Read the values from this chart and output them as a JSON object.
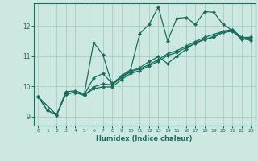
{
  "xlabel": "Humidex (Indice chaleur)",
  "ylabel": "",
  "bg_color": "#cce8e0",
  "line_color": "#1a6e5e",
  "grid_color": "#aaccc4",
  "xlim": [
    -0.5,
    23.5
  ],
  "ylim": [
    8.7,
    12.75
  ],
  "xticks": [
    0,
    1,
    2,
    3,
    4,
    5,
    6,
    7,
    8,
    9,
    10,
    11,
    12,
    13,
    14,
    15,
    16,
    17,
    18,
    19,
    20,
    21,
    22,
    23
  ],
  "yticks": [
    9,
    10,
    11,
    12
  ],
  "series": [
    {
      "x": [
        0,
        1,
        2,
        3,
        4,
        5,
        6,
        7,
        8,
        9,
        10,
        11,
        12,
        13,
        14,
        15,
        16,
        17,
        18,
        19,
        20,
        21,
        22,
        23
      ],
      "y": [
        9.65,
        9.2,
        9.05,
        9.82,
        9.85,
        9.75,
        11.45,
        11.05,
        10.05,
        10.35,
        10.55,
        11.75,
        12.05,
        12.62,
        11.5,
        12.25,
        12.28,
        12.05,
        12.47,
        12.45,
        12.05,
        11.85,
        11.55,
        11.62
      ]
    },
    {
      "x": [
        0,
        1,
        2,
        3,
        4,
        5,
        6,
        7,
        8,
        9,
        10,
        11,
        12,
        13,
        14,
        15,
        16,
        17,
        18,
        19,
        20,
        21,
        22,
        23
      ],
      "y": [
        9.65,
        9.2,
        9.05,
        9.75,
        9.8,
        9.72,
        10.28,
        10.42,
        10.1,
        10.32,
        10.5,
        10.62,
        10.82,
        10.98,
        10.75,
        11.0,
        11.22,
        11.45,
        11.55,
        11.65,
        11.82,
        11.88,
        11.62,
        11.62
      ]
    },
    {
      "x": [
        0,
        2,
        3,
        4,
        5,
        6,
        7,
        8,
        9,
        10,
        11,
        12,
        13,
        14,
        15,
        16,
        17,
        18,
        19,
        20,
        21,
        22,
        23
      ],
      "y": [
        9.65,
        9.05,
        9.75,
        9.8,
        9.7,
        9.98,
        10.08,
        10.05,
        10.28,
        10.48,
        10.58,
        10.72,
        10.88,
        11.08,
        11.18,
        11.33,
        11.48,
        11.62,
        11.72,
        11.82,
        11.88,
        11.62,
        11.58
      ]
    },
    {
      "x": [
        0,
        2,
        3,
        4,
        5,
        6,
        7,
        8,
        9,
        10,
        11,
        12,
        13,
        14,
        15,
        16,
        17,
        18,
        19,
        20,
        21,
        22,
        23
      ],
      "y": [
        9.65,
        9.05,
        9.75,
        9.8,
        9.7,
        9.92,
        9.98,
        9.98,
        10.22,
        10.42,
        10.52,
        10.68,
        10.82,
        11.02,
        11.12,
        11.28,
        11.42,
        11.55,
        11.62,
        11.78,
        11.82,
        11.58,
        11.52
      ]
    }
  ]
}
